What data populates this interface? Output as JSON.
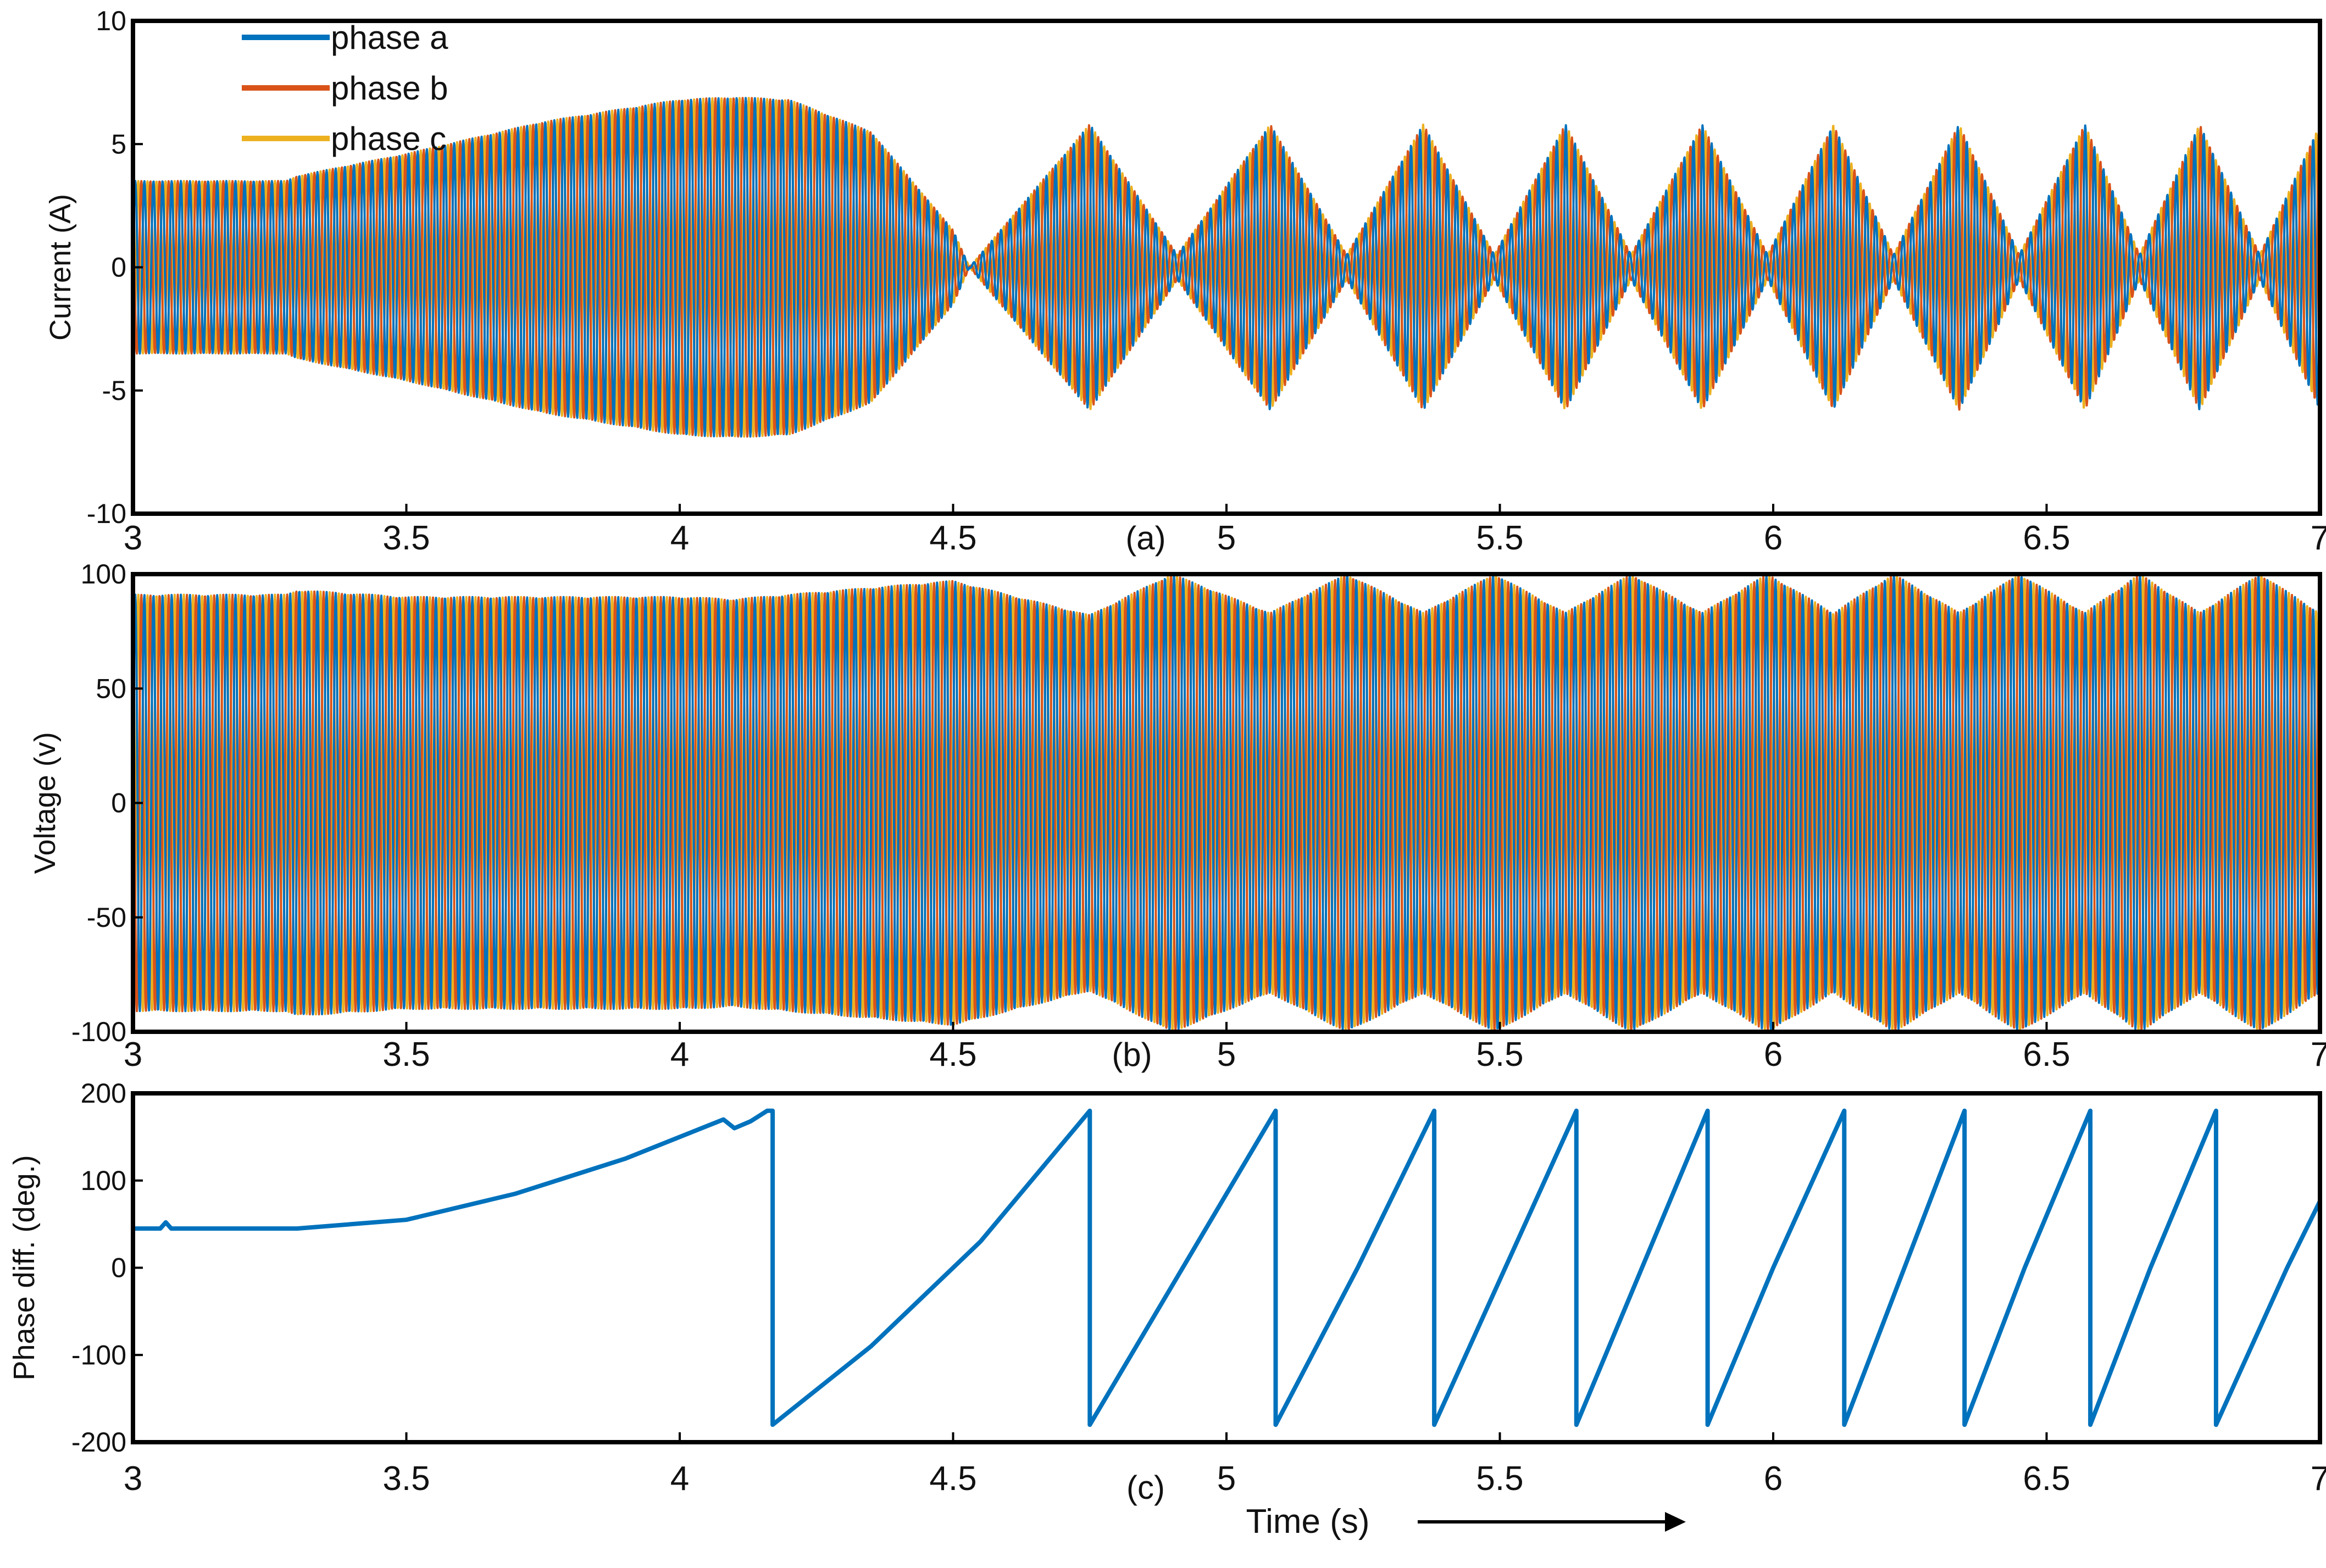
{
  "figure": {
    "x_axis_label": "Time (s)",
    "colors": {
      "phase_a": "#0072BD",
      "phase_b": "#D95319",
      "phase_c": "#EDB120",
      "axes": "#000000"
    }
  },
  "chart_data": [
    {
      "type": "line",
      "panel_label": "(a)",
      "ylabel": "Current (A)",
      "xlim": [
        3,
        7
      ],
      "ylim": [
        -10,
        10
      ],
      "x_ticks": [
        "3",
        "3.5",
        "4",
        "4.5",
        "5",
        "5.5",
        "6",
        "6.5",
        "7"
      ],
      "y_ticks": [
        "10",
        "5",
        "0",
        "-5",
        "-10"
      ],
      "legend": {
        "placement": "top-left",
        "entries": [
          "phase a",
          "phase b",
          "phase c"
        ]
      },
      "series": [
        {
          "name": "phase a",
          "color": "#0072BD"
        },
        {
          "name": "phase b",
          "color": "#D95319"
        },
        {
          "name": "phase c",
          "color": "#EDB120"
        }
      ],
      "envelope": {
        "x": [
          3.0,
          3.28,
          3.3,
          3.5,
          3.75,
          4.0,
          4.1,
          4.2,
          4.35,
          4.5,
          4.53,
          4.75,
          4.91,
          5.08,
          5.22,
          5.36,
          5.49,
          5.62,
          5.74,
          5.87,
          5.99,
          6.11,
          6.22,
          6.34,
          6.45,
          6.57,
          6.67,
          6.78,
          6.89,
          7.0,
          7.05
        ],
        "amplitude": [
          3.5,
          3.5,
          3.7,
          4.6,
          5.9,
          6.8,
          6.9,
          6.8,
          5.5,
          1.5,
          0.0,
          5.8,
          0.5,
          5.8,
          0.5,
          5.8,
          0.5,
          5.8,
          0.5,
          5.8,
          0.5,
          5.8,
          0.5,
          5.8,
          0.5,
          5.8,
          0.5,
          5.8,
          0.5,
          5.8,
          4.5
        ]
      }
    },
    {
      "type": "line",
      "panel_label": "(b)",
      "ylabel": "Voltage (v)",
      "xlim": [
        3,
        7
      ],
      "ylim": [
        -100,
        100
      ],
      "x_ticks": [
        "3",
        "3.5",
        "4",
        "4.5",
        "5",
        "5.5",
        "6",
        "6.5",
        "7"
      ],
      "y_ticks": [
        "100",
        "50",
        "0",
        "-50",
        "-100"
      ],
      "series": [
        {
          "name": "phase a",
          "color": "#0072BD"
        },
        {
          "name": "phase b",
          "color": "#D95319"
        },
        {
          "name": "phase c",
          "color": "#EDB120"
        }
      ],
      "envelope": {
        "x": [
          3.0,
          3.28,
          3.3,
          3.5,
          4.0,
          4.1,
          4.5,
          4.75,
          4.9,
          5.08,
          5.22,
          5.36,
          5.49,
          5.62,
          5.74,
          5.87,
          5.99,
          6.11,
          6.22,
          6.34,
          6.45,
          6.57,
          6.67,
          6.78,
          6.89,
          7.0,
          7.05
        ],
        "amplitude": [
          91,
          91,
          93,
          90,
          90,
          89,
          97,
          82,
          100,
          83,
          100,
          83,
          100,
          83,
          100,
          83,
          100,
          83,
          100,
          83,
          100,
          83,
          100,
          83,
          100,
          83,
          92
        ]
      }
    },
    {
      "type": "line",
      "panel_label": "(c)",
      "ylabel": "Phase diff. (deg.)",
      "xlim": [
        3,
        7
      ],
      "ylim": [
        -200,
        200
      ],
      "x_ticks": [
        "3",
        "3.5",
        "4",
        "4.5",
        "5",
        "5.5",
        "6",
        "6.5",
        "7"
      ],
      "y_ticks": [
        "200",
        "100",
        "0",
        "-100",
        "-200"
      ],
      "series": [
        {
          "name": "phase a",
          "color": "#0072BD",
          "x": [
            3.0,
            3.05,
            3.06,
            3.07,
            3.3,
            3.5,
            3.7,
            3.9,
            4.08,
            4.1,
            4.13,
            4.16,
            4.17,
            4.17,
            4.35,
            4.55,
            4.75,
            4.75,
            4.92,
            5.09,
            5.09,
            5.24,
            5.38,
            5.38,
            5.51,
            5.64,
            5.64,
            5.76,
            5.88,
            5.88,
            6.0,
            6.13,
            6.13,
            6.24,
            6.35,
            6.35,
            6.46,
            6.58,
            6.58,
            6.69,
            6.81,
            6.81,
            6.94,
            7.05
          ],
          "y": [
            45,
            45,
            52,
            45,
            45,
            55,
            85,
            125,
            170,
            160,
            168,
            180,
            180,
            -180,
            -90,
            30,
            180,
            -180,
            0,
            180,
            -180,
            0,
            180,
            -180,
            0,
            180,
            -180,
            0,
            180,
            -180,
            0,
            180,
            -180,
            0,
            180,
            -180,
            0,
            180,
            -180,
            0,
            180,
            -180,
            0,
            140
          ]
        }
      ]
    }
  ]
}
